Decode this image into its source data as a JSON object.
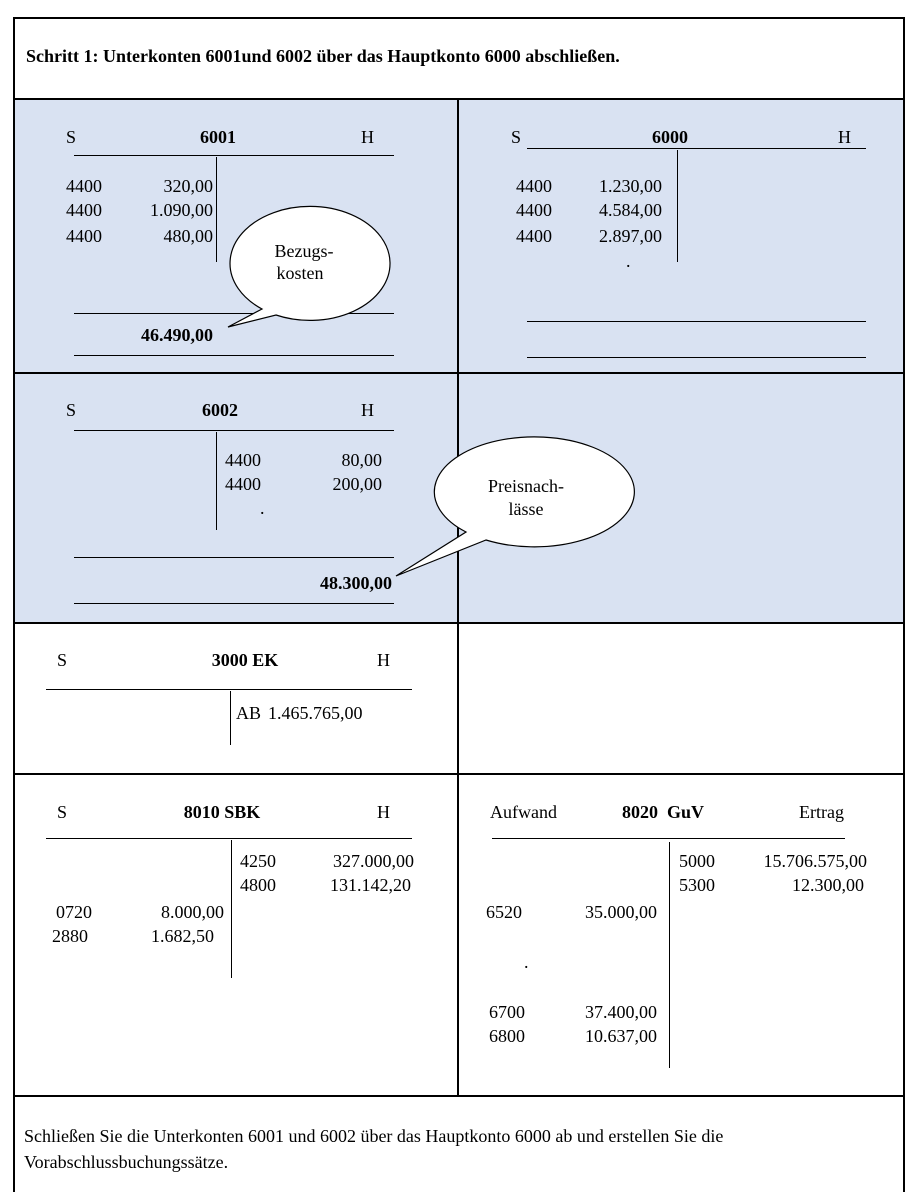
{
  "heading": "Schritt 1: Unterkonten 6001und 6002 über das Hauptkonto 6000 abschließen.",
  "colors": {
    "highlight_background": "#d9e2f2",
    "border": "#000000"
  },
  "accounts": {
    "a6001": {
      "left": "S",
      "title": "6001",
      "right": "H",
      "debit": [
        {
          "code": "4400",
          "amount": "320,00"
        },
        {
          "code": "4400",
          "amount": "1.090,00"
        },
        {
          "code": "4400",
          "amount": "480,00"
        }
      ],
      "total": "46.490,00"
    },
    "a6000": {
      "left": "S",
      "title": "6000",
      "right": "H",
      "debit": [
        {
          "code": "4400",
          "amount": "1.230,00"
        },
        {
          "code": "4400",
          "amount": "4.584,00"
        },
        {
          "code": "4400",
          "amount": "2.897,00"
        }
      ],
      "dot": "."
    },
    "a6002": {
      "left": "S",
      "title": "6002",
      "right": "H",
      "credit": [
        {
          "code": "4400",
          "amount": "80,00"
        },
        {
          "code": "4400",
          "amount": "200,00"
        }
      ],
      "dot": ".",
      "total": "48.300,00"
    },
    "a3000": {
      "left": "S",
      "title": "3000 EK",
      "right": "H",
      "credit": [
        {
          "code": "AB",
          "amount": "1.465.765,00"
        }
      ]
    },
    "a8010": {
      "left": "S",
      "title": "8010 SBK",
      "right": "H",
      "credit": [
        {
          "code": "4250",
          "amount": "327.000,00"
        },
        {
          "code": "4800",
          "amount": "131.142,20"
        }
      ],
      "debit": [
        {
          "code": "0720",
          "amount": "8.000,00"
        },
        {
          "code": "2880",
          "amount": "1.682,50"
        }
      ]
    },
    "a8020": {
      "left": "Aufwand",
      "title": "8020  GuV",
      "right": "Ertrag",
      "credit": [
        {
          "code": "5000",
          "amount": "15.706.575,00"
        },
        {
          "code": "5300",
          "amount": "12.300,00"
        }
      ],
      "debit": [
        {
          "code": "6520",
          "amount": "35.000,00"
        },
        {
          "code": "6700",
          "amount": "37.400,00"
        },
        {
          "code": "6800",
          "amount": "10.637,00"
        }
      ],
      "dot": "."
    }
  },
  "callouts": {
    "bezugskosten": [
      "Bezugs-",
      "kosten"
    ],
    "preisnachlaesse": [
      "Preisnach-",
      "lässe"
    ]
  },
  "instruction": [
    "Schließen Sie die Unterkonten 6001 und 6002 über das Hauptkonto 6000 ab und erstellen Sie die",
    "Vorabschlussbuchungssätze."
  ]
}
